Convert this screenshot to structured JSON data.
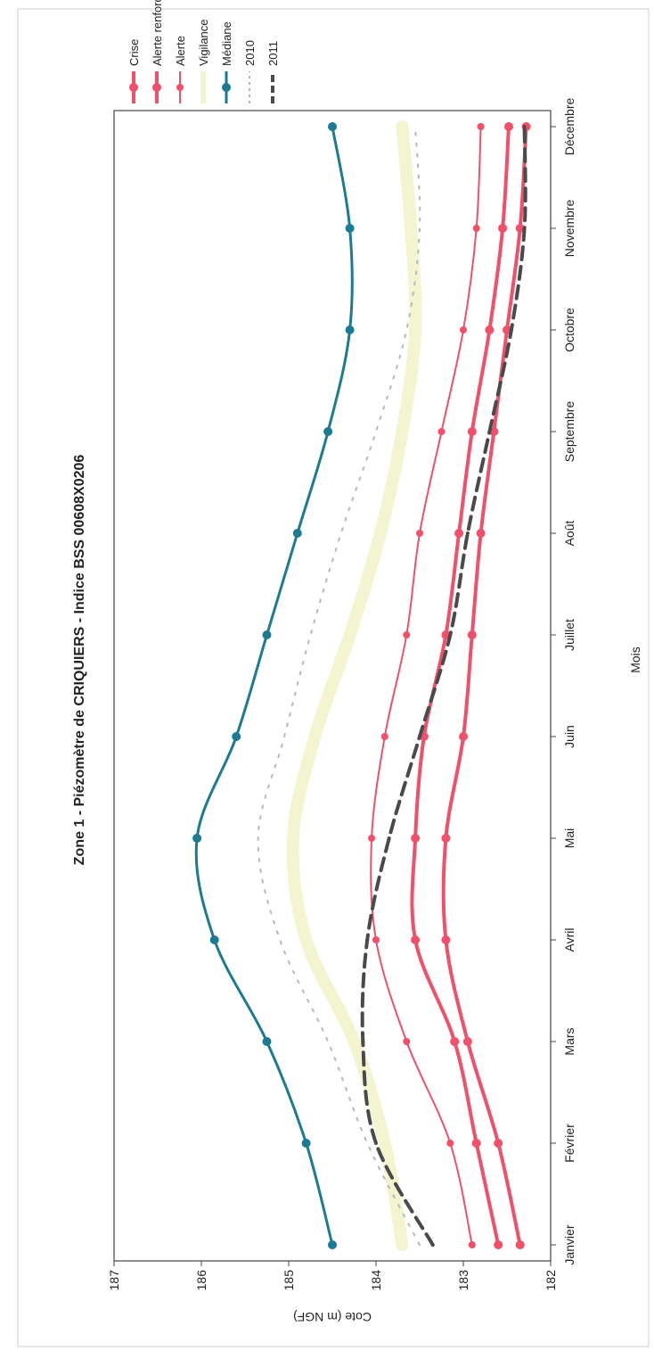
{
  "chart_data": {
    "type": "line",
    "title": "Zone 1 - Piézomètre de CRIQUIERS - Indice BSS 00608X0206",
    "xlabel": "Mois",
    "ylabel": "Cote (m NGF)",
    "ylim": [
      182,
      187
    ],
    "yticks": [
      "182",
      "183",
      "184",
      "185",
      "186",
      "187"
    ],
    "categories": [
      "Janvier",
      "Février",
      "Mars",
      "Avril",
      "Mai",
      "Juin",
      "Juillet",
      "Août",
      "Septembre",
      "Octobre",
      "Novembre",
      "Décembre"
    ],
    "legend_position": "right",
    "grid": false,
    "series": [
      {
        "name": "Crise",
        "color": "#f0506a",
        "values": [
          182.35,
          182.6,
          182.95,
          183.2,
          183.2,
          183.0,
          182.9,
          182.8,
          182.65,
          182.5,
          182.35,
          182.28
        ]
      },
      {
        "name": "Alerte renforcée",
        "color": "#f0506a",
        "values": [
          182.6,
          182.85,
          183.1,
          183.55,
          183.55,
          183.45,
          183.2,
          183.05,
          182.9,
          182.7,
          182.55,
          182.48
        ]
      },
      {
        "name": "Alerte",
        "color": "#f0506a",
        "values": [
          182.9,
          183.15,
          183.65,
          184.0,
          184.05,
          183.9,
          183.65,
          183.5,
          183.25,
          183.0,
          182.85,
          182.8
        ]
      },
      {
        "name": "Vigilance",
        "color": "#f2f5cf",
        "values": [
          183.7,
          183.9,
          184.25,
          184.8,
          184.95,
          184.7,
          184.3,
          183.95,
          183.7,
          183.55,
          183.6,
          183.7
        ]
      },
      {
        "name": "Médiane",
        "color": "#1c7a93",
        "values": [
          184.5,
          184.8,
          185.25,
          185.85,
          186.05,
          185.6,
          185.25,
          184.9,
          184.55,
          184.3,
          184.3,
          184.5
        ]
      },
      {
        "name": "2010",
        "color": "#b8b8b8",
        "values": [
          183.5,
          184.1,
          184.55,
          185.1,
          185.35,
          185.05,
          184.75,
          184.4,
          184.0,
          183.65,
          183.5,
          183.55
        ]
      },
      {
        "name": "2011",
        "color": "#4a4a4a",
        "values": [
          183.35,
          184.0,
          184.15,
          184.1,
          183.85,
          183.5,
          183.15,
          182.95,
          182.7,
          182.45,
          182.3,
          182.3
        ]
      }
    ]
  }
}
